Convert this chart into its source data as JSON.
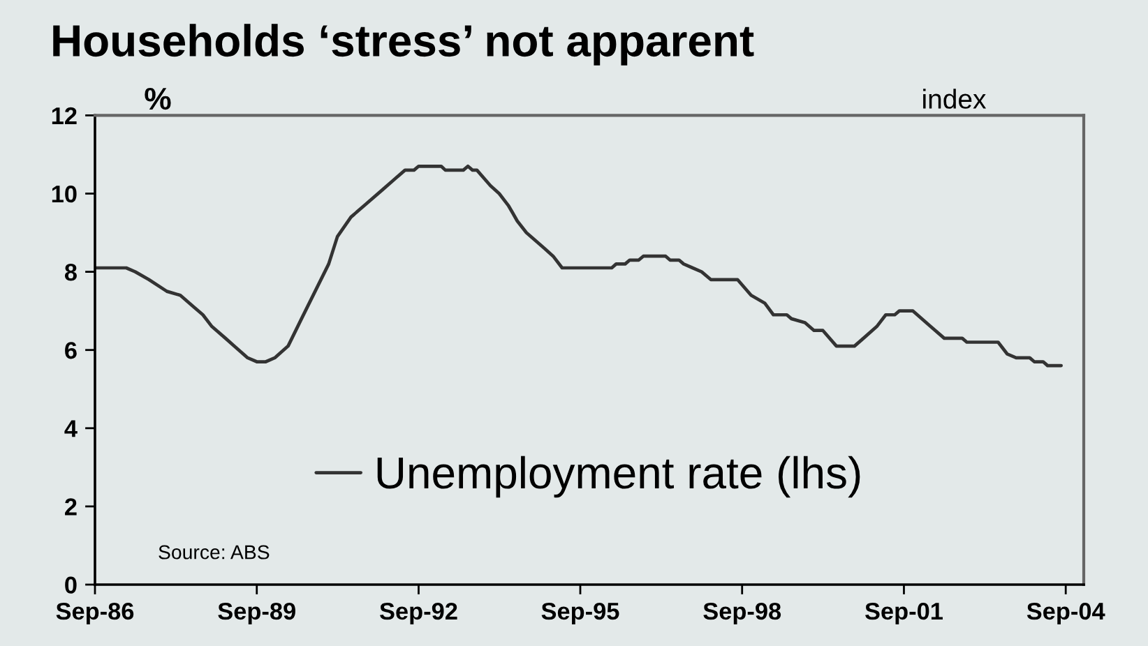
{
  "chart_data": {
    "type": "line",
    "title": "Households ‘stress’ not apparent",
    "ylabel": "%",
    "y2label": "index",
    "annotations": [
      "Source: ABS"
    ],
    "x": [
      "1986-09",
      "1987-04",
      "1987-06",
      "1987-09",
      "1988-01",
      "1988-04",
      "1988-07",
      "1988-09",
      "1988-11",
      "1989-02",
      "1989-04",
      "1989-07",
      "1989-09",
      "1989-11",
      "1990-01",
      "1990-04",
      "1990-07",
      "1990-10",
      "1991-01",
      "1991-03",
      "1991-06",
      "1991-09",
      "1992-01",
      "1992-04",
      "1992-06",
      "1992-08",
      "1992-09",
      "1993-02",
      "1993-03",
      "1993-07",
      "1993-08",
      "1993-09",
      "1993-10",
      "1994-01",
      "1994-03",
      "1994-05",
      "1994-06",
      "1994-07",
      "1994-09",
      "1994-11",
      "1995-01",
      "1995-03",
      "1995-05",
      "1996-04",
      "1996-05",
      "1996-07",
      "1996-08",
      "1996-10",
      "1996-11",
      "1997-04",
      "1997-05",
      "1997-07",
      "1997-08",
      "1997-10",
      "1997-12",
      "1998-02",
      "1998-08",
      "1998-11",
      "1999-02",
      "1999-04",
      "1999-07",
      "1999-08",
      "1999-11",
      "2000-01",
      "2000-03",
      "2000-06",
      "2000-10",
      "2000-12",
      "2001-03",
      "2001-05",
      "2001-07",
      "2001-08",
      "2001-11",
      "2002-03",
      "2002-06",
      "2002-10",
      "2002-11",
      "2003-06",
      "2003-08",
      "2003-10",
      "2004-01",
      "2004-02",
      "2004-04",
      "2004-05",
      "2004-08"
    ],
    "series": [
      {
        "name": "Unemployment rate (lhs)",
        "color": "#333333",
        "values": [
          8.1,
          8.1,
          8.0,
          7.8,
          7.5,
          7.4,
          7.1,
          6.9,
          6.6,
          6.3,
          6.1,
          5.8,
          5.7,
          5.7,
          5.8,
          6.1,
          6.8,
          7.5,
          8.2,
          8.9,
          9.4,
          9.7,
          10.1,
          10.4,
          10.6,
          10.6,
          10.7,
          10.7,
          10.6,
          10.6,
          10.7,
          10.6,
          10.6,
          10.2,
          10.0,
          9.7,
          9.5,
          9.3,
          9.0,
          8.8,
          8.6,
          8.4,
          8.1,
          8.1,
          8.2,
          8.2,
          8.3,
          8.3,
          8.4,
          8.4,
          8.3,
          8.3,
          8.2,
          8.1,
          8.0,
          7.8,
          7.8,
          7.4,
          7.2,
          6.9,
          6.9,
          6.8,
          6.7,
          6.5,
          6.5,
          6.1,
          6.1,
          6.3,
          6.6,
          6.9,
          6.9,
          7.0,
          7.0,
          6.6,
          6.3,
          6.3,
          6.2,
          6.2,
          5.9,
          5.8,
          5.8,
          5.7,
          5.7,
          5.6,
          5.6
        ]
      }
    ],
    "xlim": [
      "1986-09",
      "2005-01"
    ],
    "xticks": [
      {
        "value": "1986-09",
        "label": "Sep-86"
      },
      {
        "value": "1989-09",
        "label": "Sep-89"
      },
      {
        "value": "1992-09",
        "label": "Sep-92"
      },
      {
        "value": "1995-09",
        "label": "Sep-95"
      },
      {
        "value": "1998-09",
        "label": "Sep-98"
      },
      {
        "value": "2001-09",
        "label": "Sep-01"
      },
      {
        "value": "2004-09",
        "label": "Sep-04"
      }
    ],
    "ylim": [
      0,
      12
    ],
    "yticks": [
      0,
      2,
      4,
      6,
      8,
      10,
      12
    ],
    "legend": "bottom",
    "line_style": "solid"
  }
}
